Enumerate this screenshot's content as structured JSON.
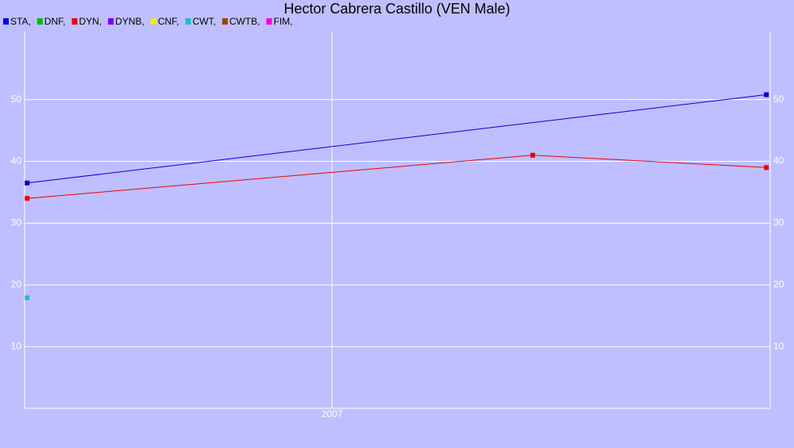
{
  "chart_data": {
    "type": "line",
    "title": "Hector Cabrera Castillo (VEN Male)",
    "xlim": [
      2005.79,
      2008.725
    ],
    "xticks": [
      2007
    ],
    "ylim": [
      0,
      61
    ],
    "yticks": [
      10,
      20,
      30,
      40,
      50
    ],
    "grid": true,
    "series": [
      {
        "name": "STA,",
        "color": "#0000dd",
        "x": [
          2005.8,
          2008.71
        ],
        "values": [
          36.5,
          50.8
        ]
      },
      {
        "name": "DNF,",
        "color": "#00bb00",
        "x": [],
        "values": []
      },
      {
        "name": "DYN,",
        "color": "#ee0000",
        "x": [
          2005.8,
          2007.79,
          2008.71
        ],
        "values": [
          34.0,
          41.0,
          39.0
        ]
      },
      {
        "name": "DYNB,",
        "color": "#7a00ee",
        "x": [],
        "values": []
      },
      {
        "name": "CNF,",
        "color": "#eeee00",
        "x": [],
        "values": []
      },
      {
        "name": "CWT,",
        "color": "#22bbcc",
        "x": [
          2005.8
        ],
        "values": [
          17.9
        ]
      },
      {
        "name": "CWTB,",
        "color": "#a04000",
        "x": [],
        "values": []
      },
      {
        "name": "FIM,",
        "color": "#ee00ee",
        "x": [],
        "values": []
      }
    ]
  }
}
